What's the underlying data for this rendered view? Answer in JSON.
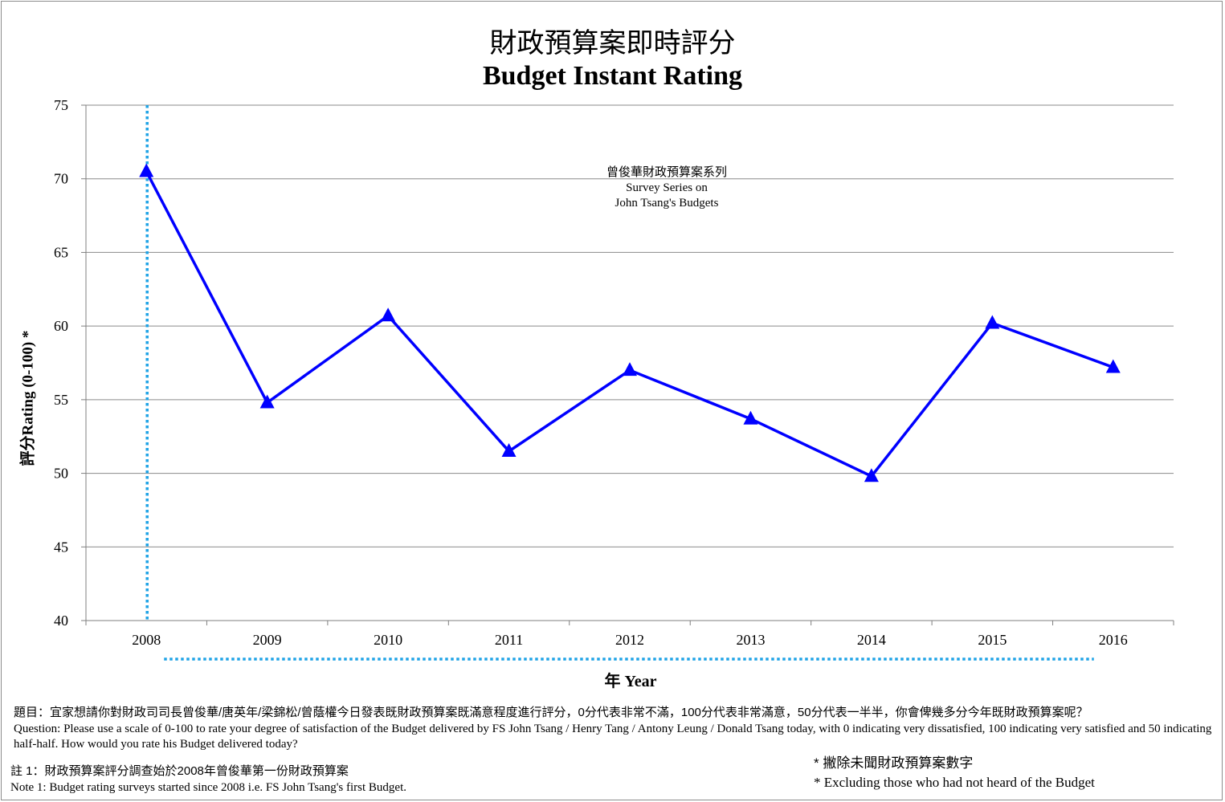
{
  "chart_data": {
    "type": "line",
    "title": "財政預算案即時評分",
    "subtitle": "Budget Instant Rating",
    "xlabel": "年 Year",
    "ylabel": "評分Rating (0-100) *",
    "categories": [
      "2008",
      "2009",
      "2010",
      "2011",
      "2012",
      "2013",
      "2014",
      "2015",
      "2016"
    ],
    "series": [
      {
        "values": [
          70.5,
          54.8,
          60.7,
          51.5,
          57.0,
          53.7,
          49.8,
          60.2,
          57.2
        ]
      }
    ],
    "ylim": [
      40,
      75
    ],
    "yticks": [
      40,
      45,
      50,
      55,
      60,
      65,
      70,
      75
    ],
    "grid": true,
    "legend": "none",
    "series_color": "#0000ff",
    "marker": "triangle",
    "annotation": {
      "line1": "曾俊華財政預算案系列",
      "line2": "Survey Series on",
      "line3": "John Tsang's Budgets"
    },
    "vertical_marker_at": "2008",
    "vertical_marker_color": "#1fa3e6"
  },
  "notes": {
    "question_zh": "題目：宜家想請你對財政司司長曾俊華/唐英年/梁錦松/曾蔭權今日發表既財政預算案既滿意程度進行評分，0分代表非常不滿，100分代表非常滿意，50分代表一半半，你會俾幾多分今年既財政預算案呢？",
    "question_en": "Question: Please use a scale of 0-100 to rate your degree of satisfaction of the Budget delivered by FS John Tsang / Henry Tang / Antony Leung / Donald Tsang today, with 0 indicating very dissatisfied, 100 indicating very satisfied and 50 indicating half-half. How would you rate his Budget delivered today?",
    "note1_zh": "註 1：財政預算案評分調查始於2008年曾俊華第一份財政預算案",
    "note1_en": "Note 1: Budget rating surveys started since 2008 i.e. FS John Tsang's first Budget.",
    "exclusion_zh": "* 撇除未聞財政預算案數字",
    "exclusion_en": "* Excluding those who had not heard of the Budget"
  }
}
